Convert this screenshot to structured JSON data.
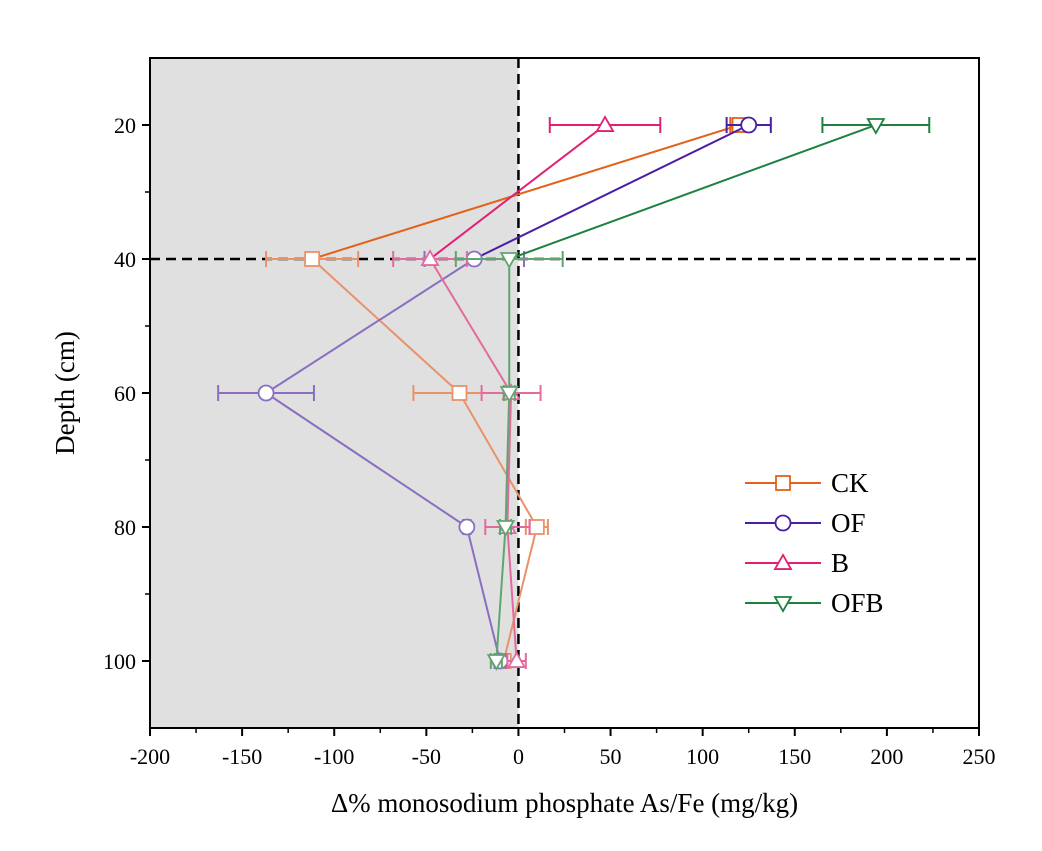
{
  "chart_data": {
    "type": "line",
    "orientation": "horizontal-depth-profile",
    "xlabel": "Δ% monosodium phosphate As/Fe (mg/kg)",
    "ylabel": "Depth (cm)",
    "xlim": [
      -200,
      250
    ],
    "ylim": [
      110,
      10
    ],
    "y_inverted": true,
    "x_ticks": [
      -200,
      -150,
      -100,
      -50,
      0,
      50,
      100,
      150,
      200,
      250
    ],
    "x_tick_labels": [
      "-200",
      "-150",
      "-100",
      "-50",
      "0",
      "50",
      "100",
      "150",
      "200",
      "250"
    ],
    "y_ticks": [
      20,
      40,
      60,
      80,
      100
    ],
    "y_tick_labels": [
      "20",
      "40",
      "60",
      "80",
      "100"
    ],
    "shaded_region": {
      "x_from": -200,
      "x_to": 0,
      "color": "#e0e0e0"
    },
    "reference_lines": [
      {
        "axis": "x",
        "value": 0,
        "style": "dashed",
        "color": "#000000"
      },
      {
        "axis": "y",
        "value": 40,
        "style": "dashed",
        "color": "#000000"
      }
    ],
    "grid": false,
    "legend_position": "lower-right",
    "series": [
      {
        "name": "CK",
        "marker": "square",
        "color_strong": "#e2611b",
        "color_light": "#e8926a",
        "points": [
          {
            "y": 20,
            "x": 120,
            "err": 5
          },
          {
            "y": 40,
            "x": -112,
            "err": 25
          },
          {
            "y": 60,
            "x": -32,
            "err": 25
          },
          {
            "y": 80,
            "x": 10,
            "err": 6
          },
          {
            "y": 100,
            "x": -8,
            "err": 3
          }
        ]
      },
      {
        "name": "OF",
        "marker": "circle",
        "color_strong": "#4b1fa5",
        "color_light": "#8a6fc1",
        "points": [
          {
            "y": 20,
            "x": 125,
            "err": 12
          },
          {
            "y": 40,
            "x": -24,
            "err": 27
          },
          {
            "y": 60,
            "x": -137,
            "err": 26
          },
          {
            "y": 80,
            "x": -28,
            "err": 2
          },
          {
            "y": 100,
            "x": -10,
            "err": 3
          }
        ]
      },
      {
        "name": "B",
        "marker": "triangle-up",
        "color_strong": "#e21f75",
        "color_light": "#e36a9e",
        "points": [
          {
            "y": 20,
            "x": 47,
            "err": 30
          },
          {
            "y": 40,
            "x": -48,
            "err": 20
          },
          {
            "y": 60,
            "x": -4,
            "err": 16
          },
          {
            "y": 80,
            "x": -6,
            "err": 12
          },
          {
            "y": 100,
            "x": -1,
            "err": 5
          }
        ]
      },
      {
        "name": "OFB",
        "marker": "triangle-down",
        "color_strong": "#1e8142",
        "color_light": "#5fa56f",
        "points": [
          {
            "y": 20,
            "x": 194,
            "err": 29
          },
          {
            "y": 40,
            "x": -5,
            "err": 29
          },
          {
            "y": 60,
            "x": -5,
            "err": 3
          },
          {
            "y": 80,
            "x": -7,
            "err": 3
          },
          {
            "y": 100,
            "x": -12,
            "err": 3
          }
        ]
      }
    ]
  }
}
